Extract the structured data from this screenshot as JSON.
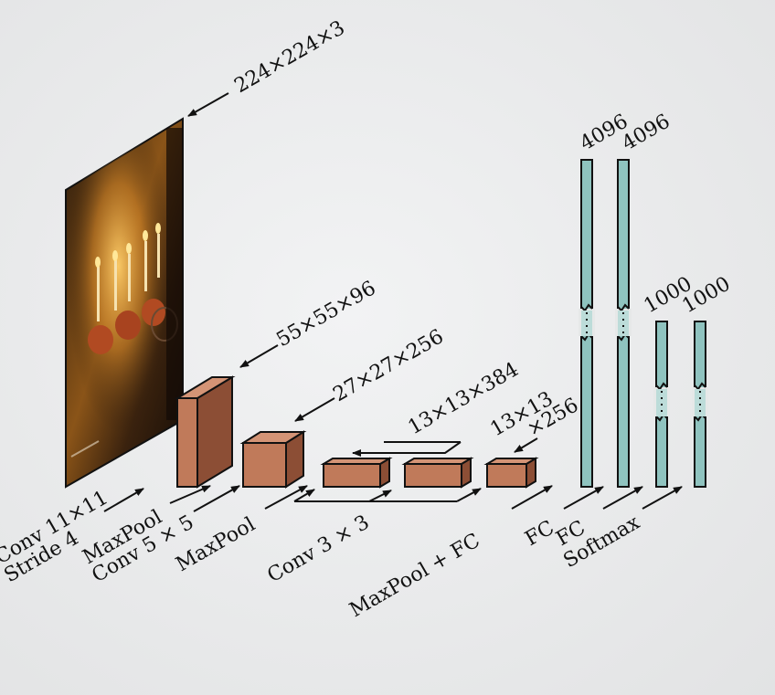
{
  "input_image": {
    "icon": "candles-photo-icon"
  },
  "dimensions": {
    "input": "224×224×3",
    "conv1": "55×55×96",
    "conv2": "27×27×256",
    "conv3": "13×13×384",
    "conv5_line1": "13×13",
    "conv5_line2": "×256",
    "fc1": "4096",
    "fc2": "4096",
    "fc3": "1000",
    "softmax": "1000"
  },
  "operations": {
    "conv1_line1": "Conv 11×11",
    "conv1_line2": "Stride 4",
    "pool_conv_line1": "MaxPool",
    "pool_conv_line2": "Conv 5 × 5",
    "maxpool": "MaxPool",
    "conv3x3": "Conv 3 × 3",
    "maxpool_fc": "MaxPool + FC",
    "fc_a": "FC",
    "fc_b": "FC",
    "softmax": "Softmax"
  },
  "colors": {
    "conv_front": "#c07a5a",
    "conv_side": "#8c4e35",
    "conv_top": "#d49476",
    "fc_bar": "#8fc3bf"
  }
}
